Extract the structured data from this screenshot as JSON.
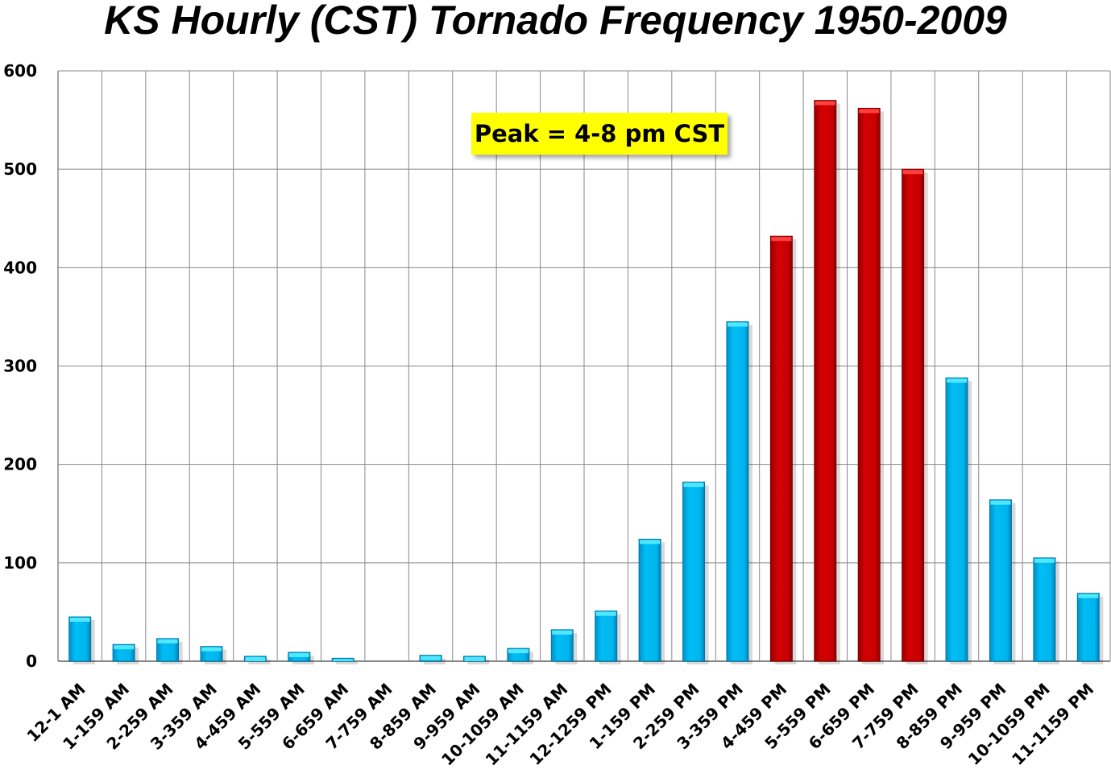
{
  "chart_data": {
    "type": "bar",
    "title": "KS Hourly (CST) Tornado Frequency 1950-2009",
    "xlabel": "",
    "ylabel": "",
    "ylim": [
      0,
      600
    ],
    "yticks": [
      0,
      100,
      200,
      300,
      400,
      500,
      600
    ],
    "grid": true,
    "categories": [
      "12-1 AM",
      "1-159 AM",
      "2-259 AM",
      "3-359 AM",
      "4-459 AM",
      "5-559 AM",
      "6-659 AM",
      "7-759 AM",
      "8-859 AM",
      "9-959 AM",
      "10-1059 AM",
      "11-1159 AM",
      "12-1259 PM",
      "1-159 PM",
      "2-259 PM",
      "3-359 PM",
      "4-459 PM",
      "5-559 PM",
      "6-659 PM",
      "7-759 PM",
      "8-859 PM",
      "9-959 PM",
      "10-1059 PM",
      "11-1159 PM"
    ],
    "values": [
      45,
      17,
      23,
      15,
      5,
      9,
      3,
      0,
      6,
      5,
      13,
      32,
      51,
      124,
      182,
      345,
      432,
      570,
      562,
      500,
      288,
      164,
      105,
      69
    ],
    "highlight": [
      false,
      false,
      false,
      false,
      false,
      false,
      false,
      false,
      false,
      false,
      false,
      false,
      false,
      false,
      false,
      false,
      true,
      true,
      true,
      true,
      false,
      false,
      false,
      false
    ],
    "colors": {
      "normal": "#00b8f0",
      "highlight": "#cc0000"
    },
    "annotation": "Peak = 4-8 pm CST",
    "annotation_color": "#ffff00"
  }
}
